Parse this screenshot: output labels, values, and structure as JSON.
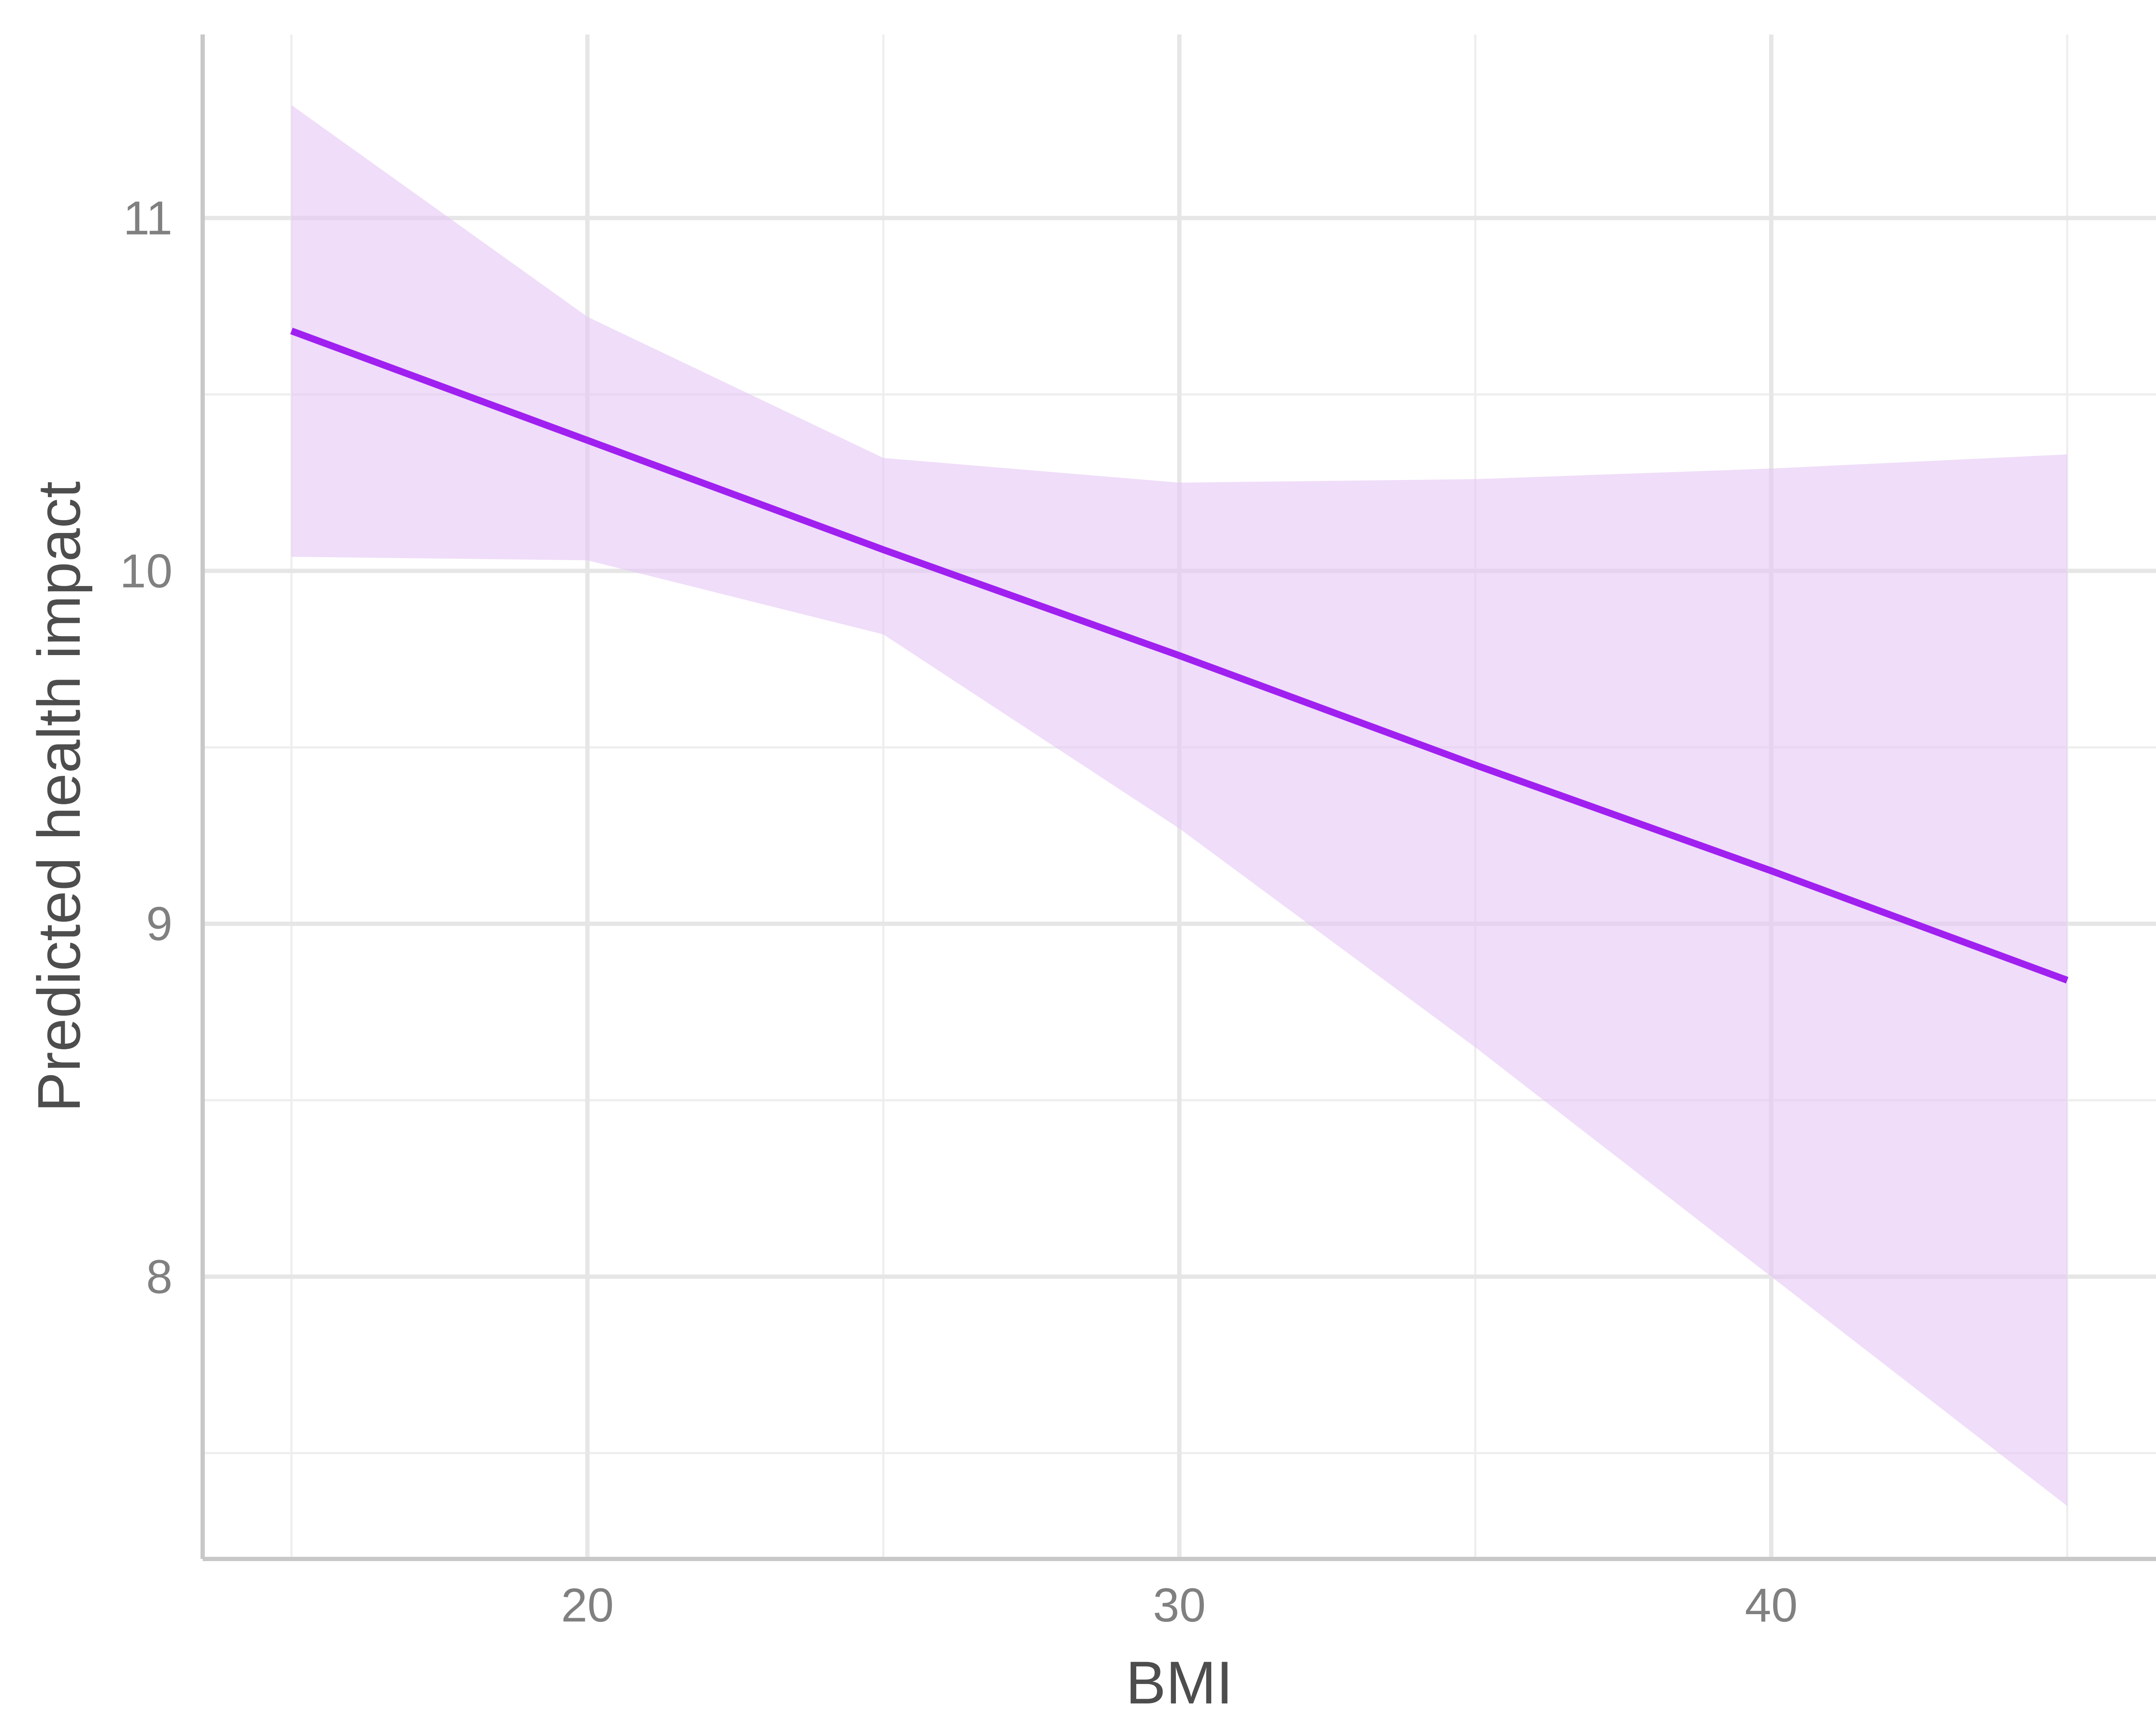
{
  "chart_data": {
    "type": "line",
    "title": "",
    "xlabel": "BMI",
    "ylabel": "Predicted health impact",
    "x_ticks": [
      20,
      30,
      40
    ],
    "y_ticks": [
      8,
      9,
      10,
      11
    ],
    "x_minor_ticks": [
      15,
      25,
      35,
      45
    ],
    "y_minor_ticks": [
      7.5,
      8.5,
      9.5,
      10.5
    ],
    "xlim": [
      13.5,
      46.5
    ],
    "ylim": [
      7.2,
      11.52
    ],
    "grid": true,
    "legend": "none",
    "series": [
      {
        "x": [
          15,
          20,
          25,
          30,
          35,
          40,
          45
        ],
        "y": [
          10.68,
          10.37,
          10.06,
          9.76,
          9.45,
          9.15,
          8.84
        ],
        "ci_lower": [
          10.04,
          10.03,
          9.82,
          9.27,
          8.65,
          8.0,
          7.35
        ],
        "ci_upper": [
          11.32,
          10.72,
          10.32,
          10.25,
          10.26,
          10.29,
          10.33
        ]
      }
    ],
    "colors": {
      "line": "#a020f0",
      "band": "#e4c7f5"
    }
  }
}
